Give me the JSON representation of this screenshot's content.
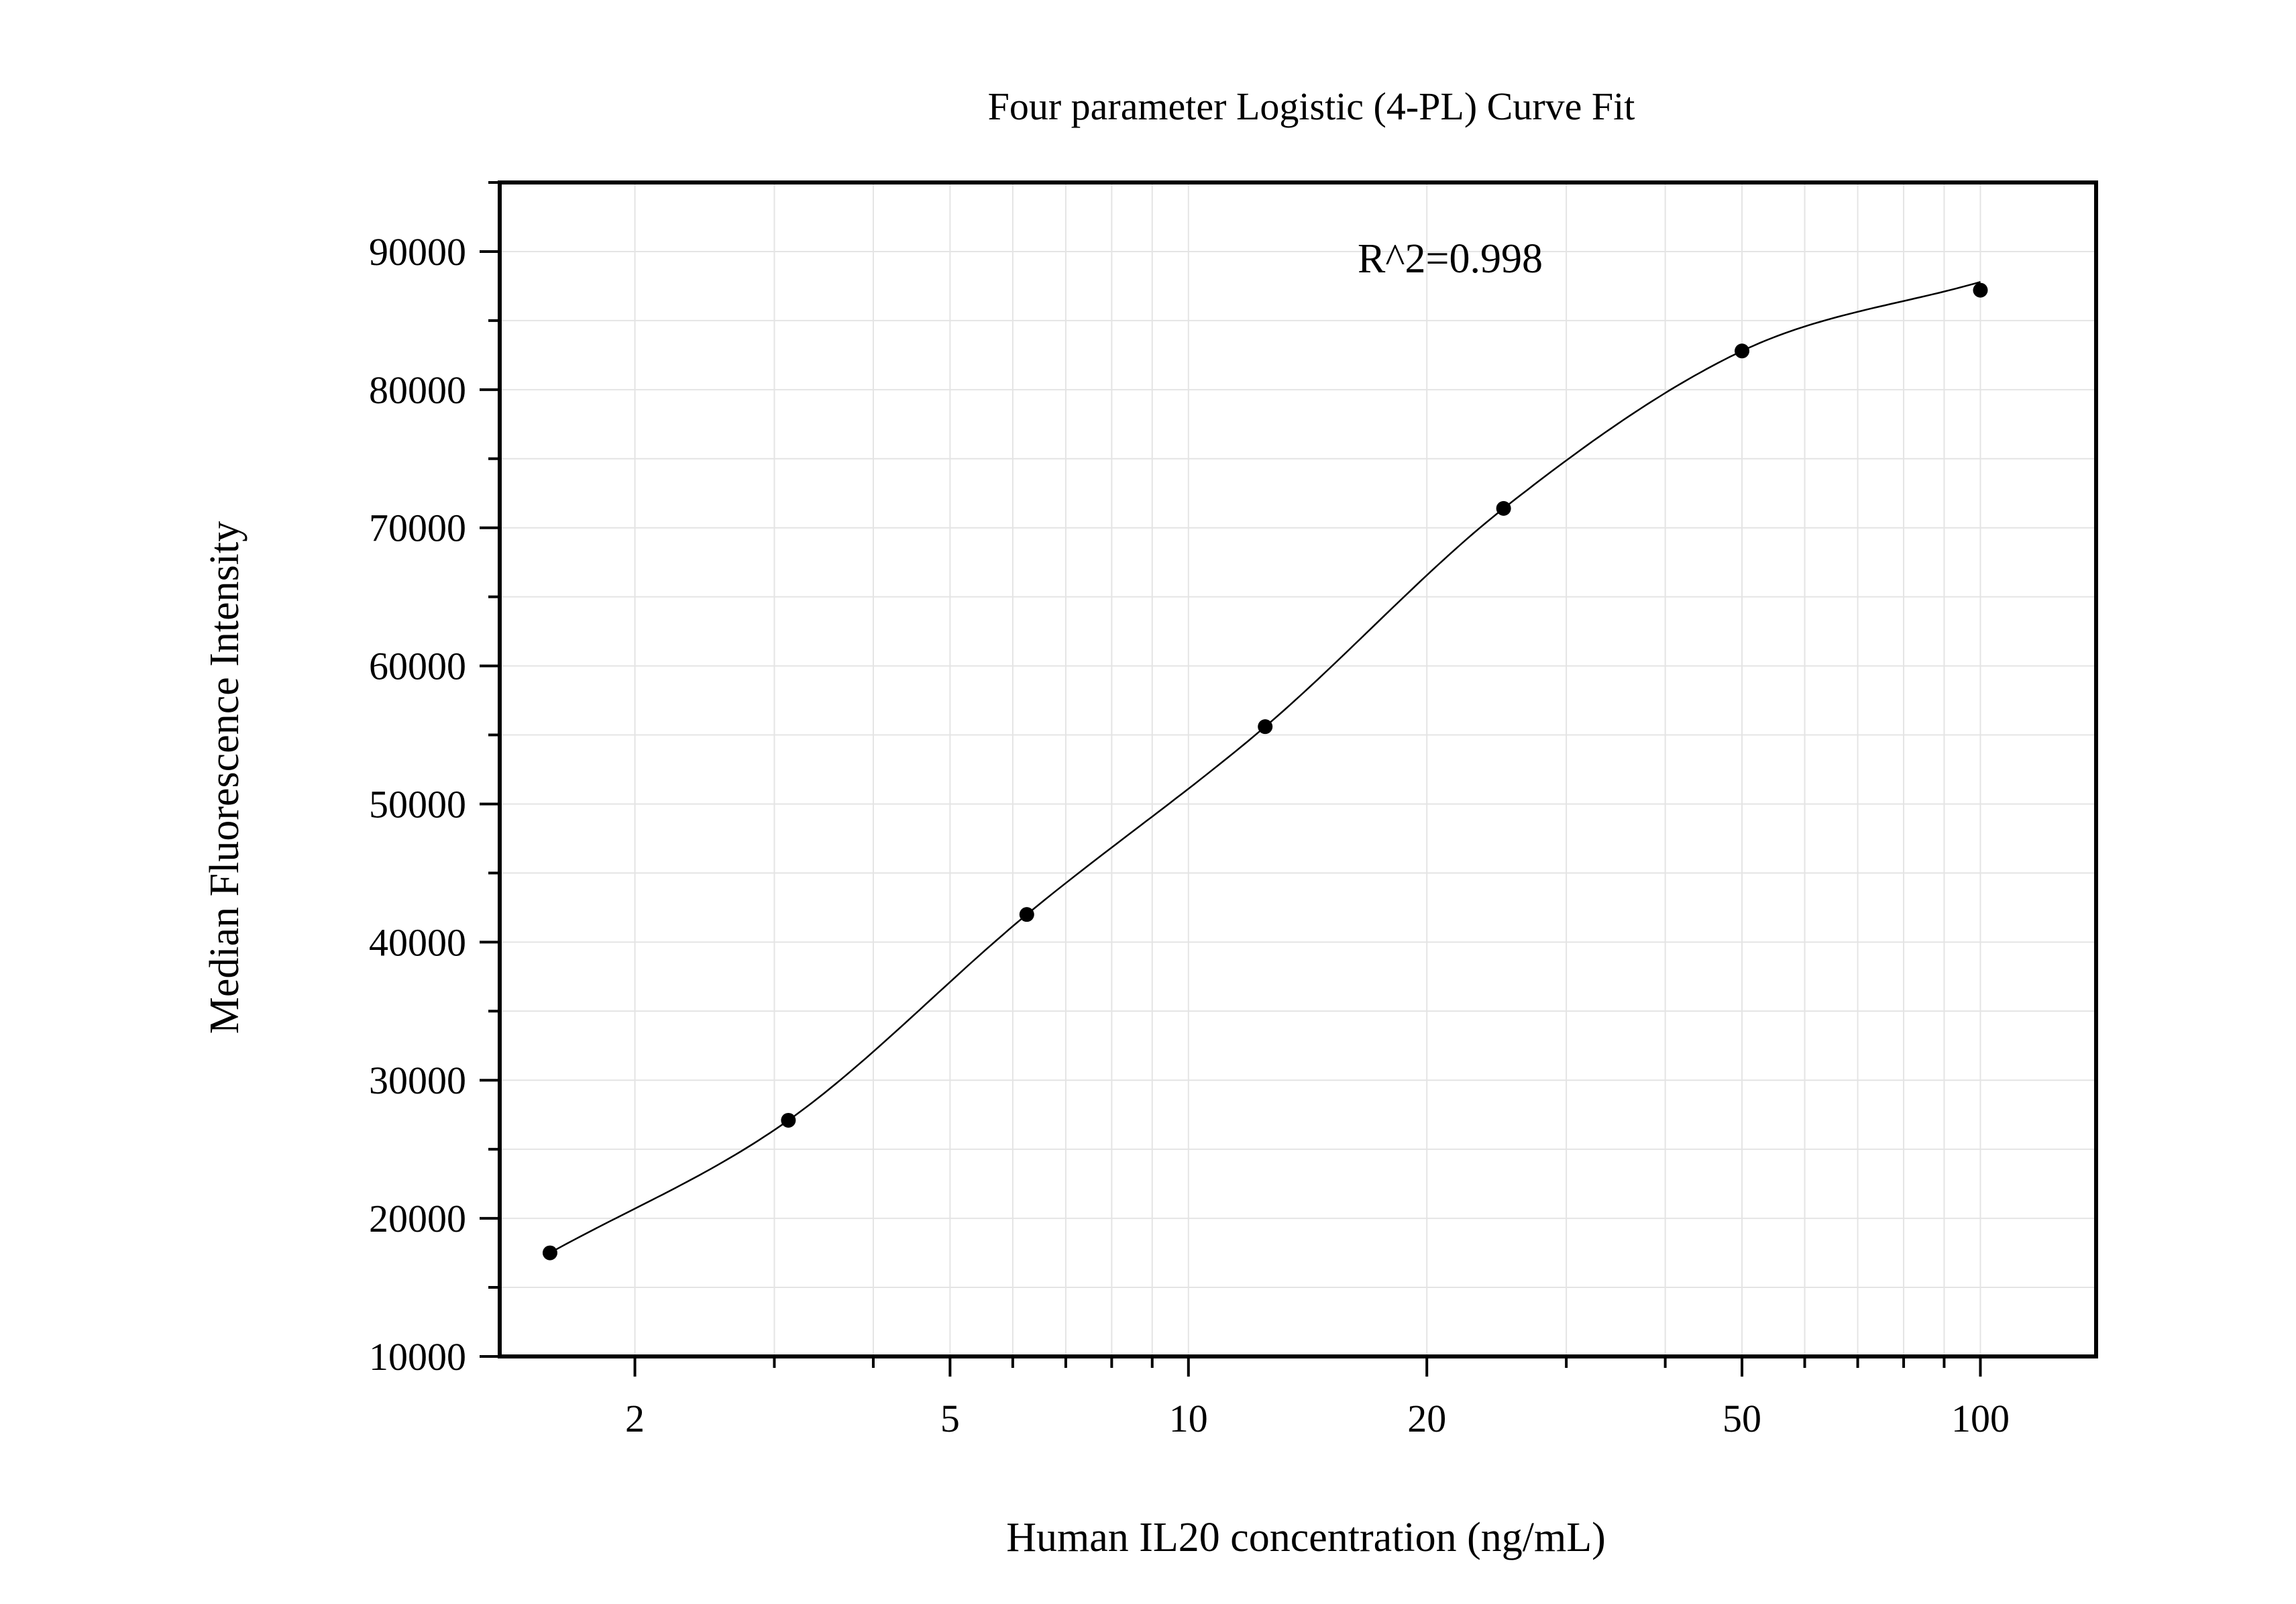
{
  "chart_data": {
    "type": "scatter",
    "title": "Four parameter Logistic (4-PL) Curve Fit",
    "xlabel": "Human IL20 concentration (ng/mL)",
    "ylabel": "Median Fluorescence Intensity",
    "x_scale": "log",
    "xlim": [
      1.35,
      140
    ],
    "ylim": [
      10000,
      95000
    ],
    "x_ticks": [
      2,
      5,
      10,
      20,
      50,
      100
    ],
    "x_tick_labels": [
      "2",
      "5",
      "10",
      "20",
      "50",
      "100"
    ],
    "y_ticks": [
      10000,
      20000,
      30000,
      40000,
      50000,
      60000,
      70000,
      80000,
      90000
    ],
    "y_tick_labels": [
      "10000",
      "20000",
      "30000",
      "40000",
      "50000",
      "60000",
      "70000",
      "80000",
      "90000"
    ],
    "grid": true,
    "annotation": "R^2=0.998",
    "points": {
      "x": [
        1.5625,
        3.125,
        6.25,
        12.5,
        25,
        50,
        100
      ],
      "y": [
        17500,
        27100,
        42000,
        55600,
        71400,
        82800,
        87200
      ]
    },
    "fit": {
      "model": "4PL",
      "x_range": [
        1.5625,
        100
      ],
      "y_at_x_min": 17500,
      "y_at_x_max": 87800
    },
    "colors": {
      "points": "#000000",
      "curve": "#000000",
      "grid": "#e4e4e4",
      "axes": "#000000"
    }
  }
}
